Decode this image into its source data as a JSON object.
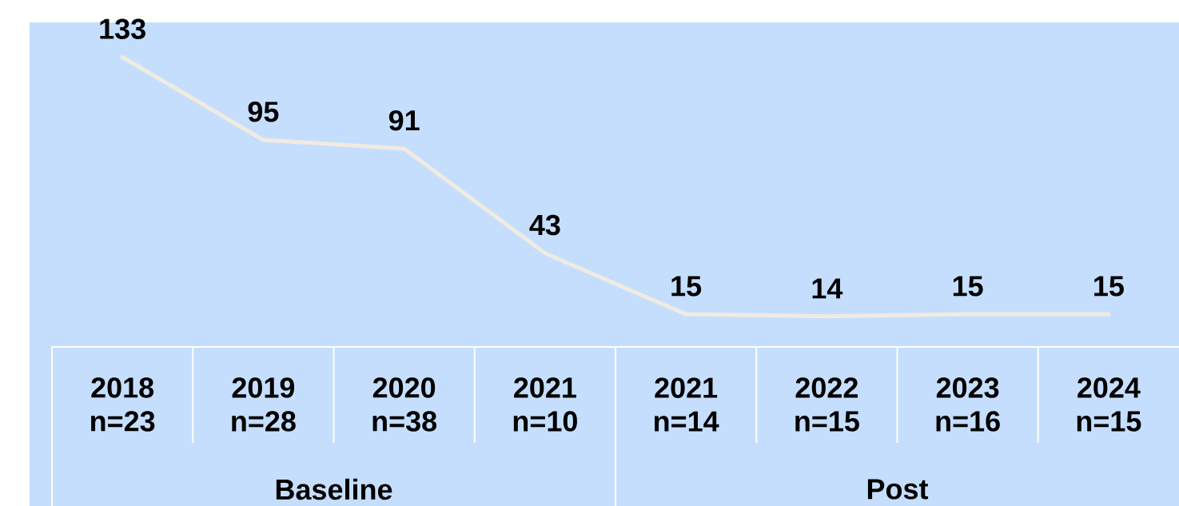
{
  "chart_data": {
    "type": "line",
    "categories": [
      "2018 n=23",
      "2019 n=28",
      "2020 n=38",
      "2021 n=10",
      "2021 n=14",
      "2022 n=15",
      "2023 n=16",
      "2024 n=15"
    ],
    "values": [
      133,
      95,
      91,
      43,
      15,
      14,
      15,
      15
    ],
    "color": "#f0ebe1",
    "data_labels": true,
    "marker": "none",
    "annotations": [
      "Baseline",
      "Post"
    ]
  }
}
